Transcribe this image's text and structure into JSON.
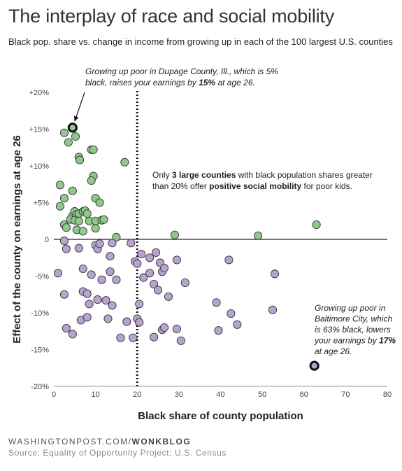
{
  "header": {
    "title": "The interplay of race and social mobility",
    "subtitle": "Black pop. share vs. change in income from growing up in each of the 100 largest U.S. counties"
  },
  "footer": {
    "brand_prefix": "WASHINGTONPOST.COM/",
    "brand_suffix": "WONKBLOG",
    "source": "Source: Equality of Opportunity Project; U.S. Census"
  },
  "colors": {
    "positive": "#8ec98a",
    "negative": "#b8a3d0",
    "stroke": "#333333",
    "divider": "#111111"
  },
  "chart_data": {
    "type": "scatter",
    "xlabel": "Black share of county population",
    "ylabel": "Effect of the county on earnings at age 26",
    "xlim": [
      0,
      80
    ],
    "ylim": [
      -20,
      20
    ],
    "x_ticks": [
      0,
      10,
      20,
      30,
      40,
      50,
      60,
      70,
      80
    ],
    "y_ticks": [
      {
        "value": 20,
        "label": "+20%"
      },
      {
        "value": 15,
        "label": "+15%"
      },
      {
        "value": 10,
        "label": "+10%"
      },
      {
        "value": 5,
        "label": "+5%"
      },
      {
        "value": 0,
        "label": "0"
      },
      {
        "value": -5,
        "label": "-5%"
      },
      {
        "value": -10,
        "label": "-10%"
      },
      {
        "value": -15,
        "label": "-15%"
      },
      {
        "value": -20,
        "label": "-20%"
      }
    ],
    "divider_x": 20,
    "grid": false,
    "annotations": {
      "dupage": {
        "lines": [
          [
            {
              "t": "Growing up poor in Dupage County, Ill., which is 5%"
            }
          ],
          [
            {
              "t": "black, raises your earnings by "
            },
            {
              "t": "15%",
              "b": true
            },
            {
              "t": " at age 26."
            }
          ]
        ]
      },
      "middle": {
        "lines": [
          [
            {
              "t": "Only "
            },
            {
              "t": "3 large counties",
              "b": true
            },
            {
              "t": " with black population shares greater"
            }
          ],
          [
            {
              "t": "than 20% offer "
            },
            {
              "t": "positive social mobility",
              "b": true
            },
            {
              "t": " for poor kids."
            }
          ]
        ]
      },
      "baltimore": {
        "lines": [
          [
            {
              "t": "Growing up poor in"
            }
          ],
          [
            {
              "t": "Baltimore City, which"
            }
          ],
          [
            {
              "t": "is 63% black, lowers"
            }
          ],
          [
            {
              "t": "your earnings by "
            },
            {
              "t": "17%",
              "b": true
            }
          ],
          [
            {
              "t": "at age 26."
            }
          ]
        ]
      }
    },
    "highlighted": [
      {
        "x": 4.5,
        "y": 15.2,
        "name": "Dupage County, Ill."
      },
      {
        "x": 62.5,
        "y": -17.2,
        "name": "Baltimore City"
      }
    ],
    "points": [
      [
        2.5,
        14.5
      ],
      [
        5.2,
        14.0
      ],
      [
        3.5,
        13.2
      ],
      [
        6.0,
        11.2
      ],
      [
        6.2,
        10.8
      ],
      [
        9.0,
        12.2
      ],
      [
        9.5,
        12.2
      ],
      [
        17.0,
        10.5
      ],
      [
        9.5,
        8.6
      ],
      [
        9.0,
        8.0
      ],
      [
        1.5,
        7.4
      ],
      [
        4.5,
        6.6
      ],
      [
        2.5,
        5.6
      ],
      [
        10.0,
        5.6
      ],
      [
        1.5,
        4.5
      ],
      [
        11.0,
        5.0
      ],
      [
        4.5,
        3.2
      ],
      [
        5.0,
        3.8
      ],
      [
        5.5,
        3.4
      ],
      [
        6.0,
        3.5
      ],
      [
        7.0,
        3.8
      ],
      [
        7.5,
        3.9
      ],
      [
        8.0,
        3.5
      ],
      [
        4.0,
        2.7
      ],
      [
        5.0,
        2.6
      ],
      [
        6.0,
        2.5
      ],
      [
        8.5,
        2.5
      ],
      [
        10.0,
        2.5
      ],
      [
        11.5,
        2.6
      ],
      [
        12.0,
        2.7
      ],
      [
        2.5,
        2.0
      ],
      [
        3.0,
        1.6
      ],
      [
        5.5,
        1.3
      ],
      [
        7.0,
        1.1
      ],
      [
        10.0,
        1.5
      ],
      [
        15.0,
        0.3
      ],
      [
        29.0,
        0.6
      ],
      [
        49.0,
        0.5
      ],
      [
        63.0,
        2.0
      ],
      [
        1.0,
        -4.6
      ],
      [
        2.5,
        -0.2
      ],
      [
        3.0,
        -1.3
      ],
      [
        6.0,
        -1.2
      ],
      [
        10.0,
        -0.8
      ],
      [
        10.5,
        -1.3
      ],
      [
        11.0,
        -0.6
      ],
      [
        13.5,
        -2.3
      ],
      [
        14.0,
        -0.5
      ],
      [
        18.5,
        -0.5
      ],
      [
        19.5,
        -3.0
      ],
      [
        21.0,
        -2.0
      ],
      [
        23.0,
        -2.5
      ],
      [
        24.5,
        -1.8
      ],
      [
        7.0,
        -4.0
      ],
      [
        9.0,
        -4.8
      ],
      [
        11.5,
        -5.5
      ],
      [
        13.5,
        -4.4
      ],
      [
        15.0,
        -5.5
      ],
      [
        20.0,
        -3.3
      ],
      [
        21.5,
        -5.2
      ],
      [
        23.0,
        -4.6
      ],
      [
        24.0,
        -6.1
      ],
      [
        25.5,
        -3.2
      ],
      [
        26.0,
        -4.4
      ],
      [
        26.5,
        -3.9
      ],
      [
        29.5,
        -2.8
      ],
      [
        31.5,
        -5.9
      ],
      [
        42.0,
        -2.8
      ],
      [
        53.0,
        -4.7
      ],
      [
        2.5,
        -7.5
      ],
      [
        7.0,
        -7.1
      ],
      [
        8.0,
        -7.4
      ],
      [
        10.5,
        -8.2
      ],
      [
        12.5,
        -8.3
      ],
      [
        14.0,
        -9.0
      ],
      [
        20.5,
        -8.8
      ],
      [
        25.0,
        -6.9
      ],
      [
        27.5,
        -7.8
      ],
      [
        39.0,
        -8.6
      ],
      [
        42.5,
        -10.1
      ],
      [
        44.0,
        -11.6
      ],
      [
        52.5,
        -9.6
      ],
      [
        3.0,
        -12.1
      ],
      [
        4.5,
        -12.9
      ],
      [
        6.5,
        -11.0
      ],
      [
        8.0,
        -10.6
      ],
      [
        8.5,
        -8.8
      ],
      [
        13.0,
        -10.8
      ],
      [
        16.0,
        -13.4
      ],
      [
        17.5,
        -11.2
      ],
      [
        19.0,
        -13.4
      ],
      [
        20.0,
        -10.8
      ],
      [
        20.5,
        -11.3
      ],
      [
        24.0,
        -13.3
      ],
      [
        26.0,
        -12.3
      ],
      [
        26.5,
        -12.0
      ],
      [
        29.5,
        -12.2
      ],
      [
        30.5,
        -13.8
      ],
      [
        39.5,
        -12.4
      ]
    ]
  }
}
